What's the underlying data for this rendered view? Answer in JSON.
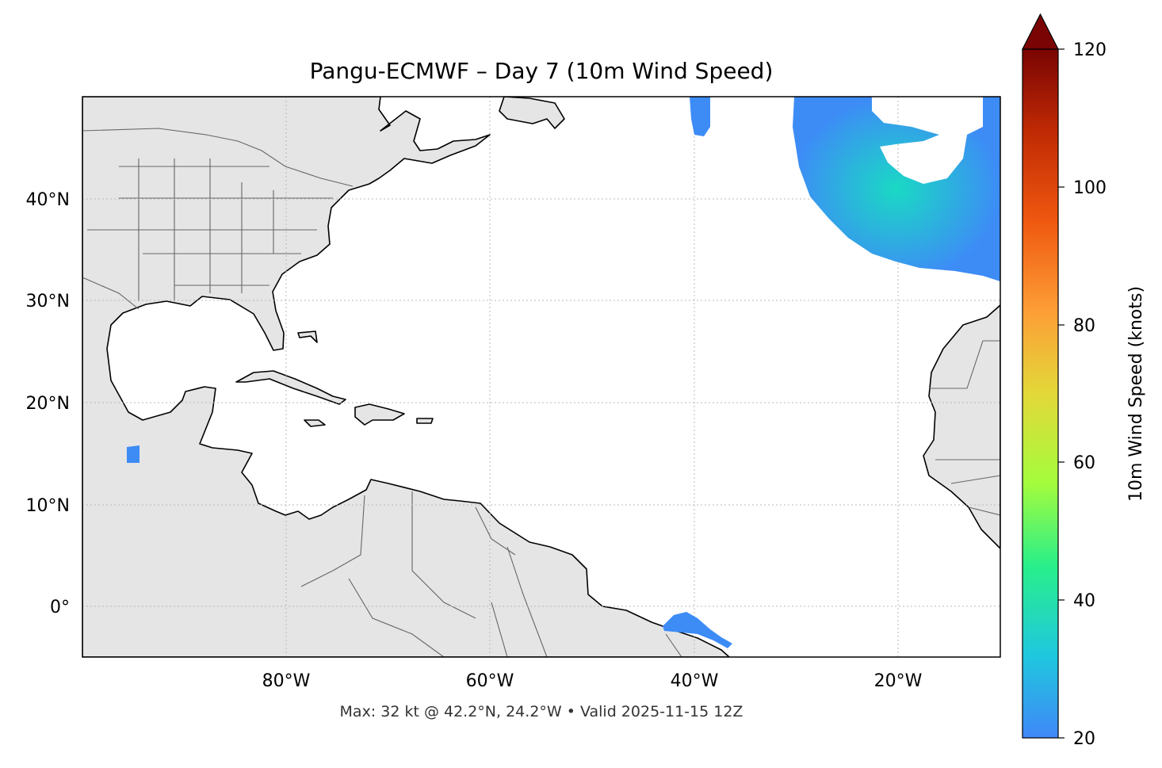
{
  "title": "Pangu-ECMWF – Day 7 (10m Wind Speed)",
  "footer": "Max: 32 kt @ 42.2°N, 24.2°W • Valid 2025-11-15 12Z",
  "map": {
    "projection": "PlateCarree",
    "lon_range": [
      -100,
      -10
    ],
    "lat_range": [
      -5,
      50
    ],
    "land_color": "#e5e5e5",
    "ocean_color": "#ffffff",
    "coastline_color": "#000000",
    "border_color": "#666666",
    "gridlines": "dotted",
    "lon_ticks": [
      {
        "value": -80,
        "label": "80°W"
      },
      {
        "value": -60,
        "label": "60°W"
      },
      {
        "value": -40,
        "label": "40°W"
      },
      {
        "value": -20,
        "label": "20°W"
      }
    ],
    "lat_ticks": [
      {
        "value": 40,
        "label": "40°N"
      },
      {
        "value": 30,
        "label": "30°N"
      },
      {
        "value": 20,
        "label": "20°N"
      },
      {
        "value": 10,
        "label": "10°N"
      },
      {
        "value": 0,
        "label": "0°"
      }
    ]
  },
  "wind_field": {
    "threshold_kt": 20,
    "max_kt": 32,
    "max_location": {
      "lat": 42.2,
      "lon": -24.2
    }
  },
  "colorbar": {
    "label": "10m Wind Speed (knots)",
    "vmin": 20,
    "vmax": 120,
    "extend": "max",
    "ticks": [
      {
        "value": 20,
        "label": "20"
      },
      {
        "value": 40,
        "label": "40"
      },
      {
        "value": 60,
        "label": "60"
      },
      {
        "value": 80,
        "label": "80"
      },
      {
        "value": 100,
        "label": "100"
      },
      {
        "value": 120,
        "label": "120"
      }
    ],
    "colormap": [
      "#3f88f8",
      "#1fc8de",
      "#29ef8a",
      "#a4fc3c",
      "#e3d839",
      "#fd9e36",
      "#ef5810",
      "#c02a04",
      "#7a0403"
    ]
  }
}
